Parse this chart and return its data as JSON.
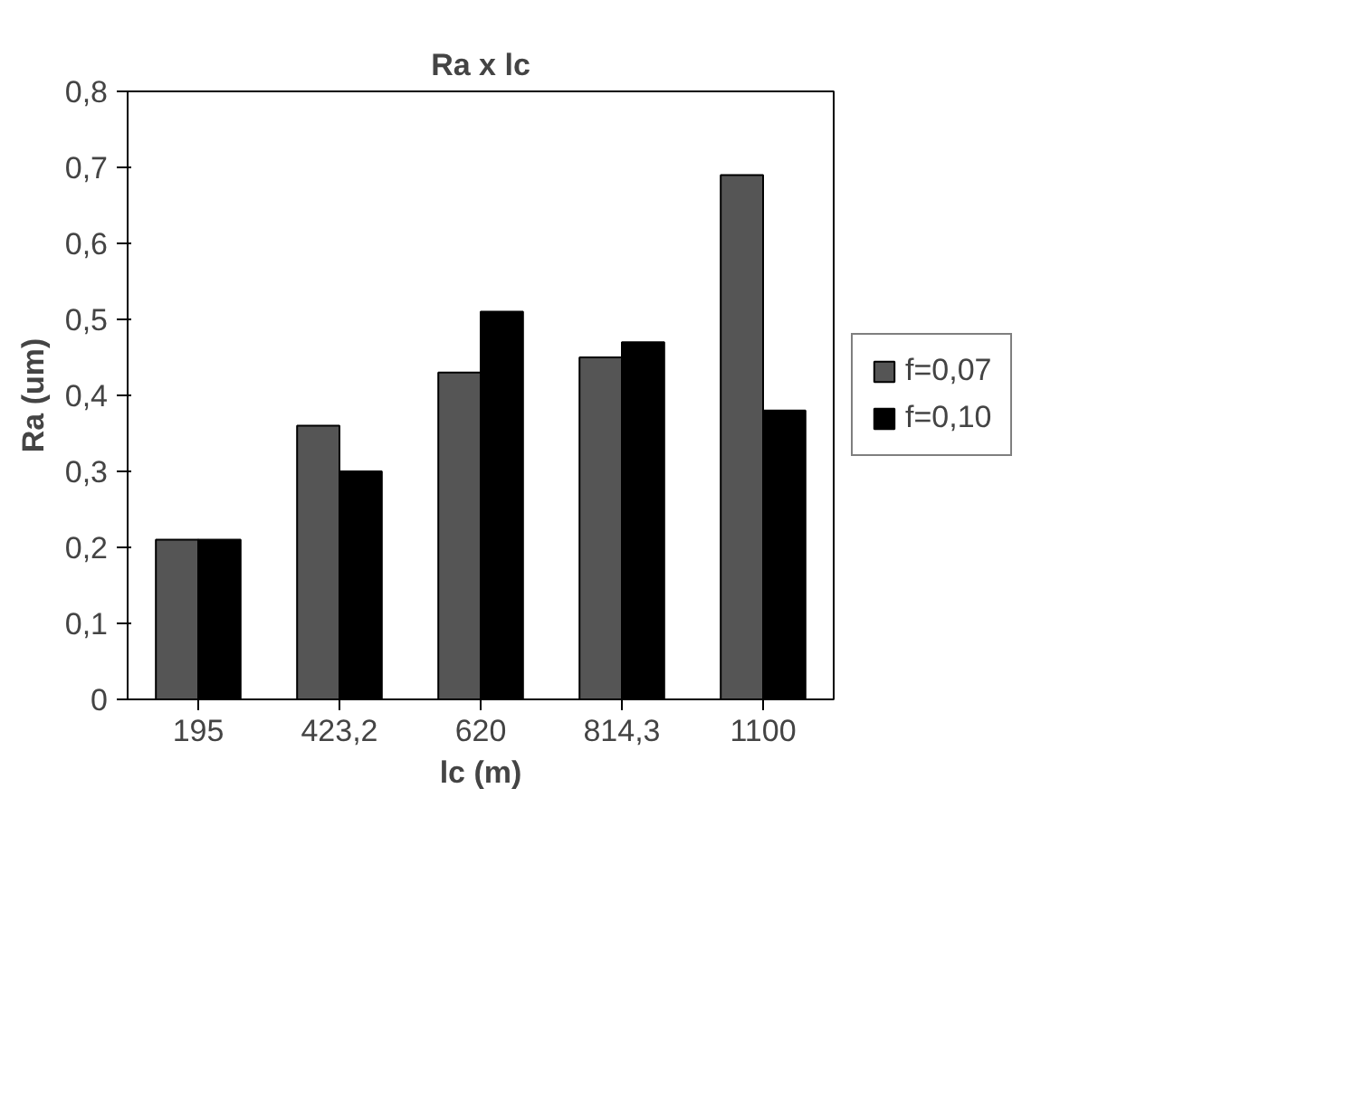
{
  "chart_data": {
    "type": "bar",
    "title": "Ra x lc",
    "xlabel": "lc (m)",
    "ylabel": "Ra (um)",
    "categories": [
      "195",
      "423,2",
      "620",
      "814,3",
      "1100"
    ],
    "series": [
      {
        "name": "f=0,07",
        "color": "#555555",
        "values": [
          0.21,
          0.36,
          0.43,
          0.45,
          0.69
        ]
      },
      {
        "name": "f=0,10",
        "color": "#000000",
        "values": [
          0.21,
          0.3,
          0.51,
          0.47,
          0.38
        ]
      }
    ],
    "ylim": [
      0,
      0.8
    ],
    "yticks": [
      {
        "value": 0,
        "label": "0"
      },
      {
        "value": 0.1,
        "label": "0,1"
      },
      {
        "value": 0.2,
        "label": "0,2"
      },
      {
        "value": 0.3,
        "label": "0,3"
      },
      {
        "value": 0.4,
        "label": "0,4"
      },
      {
        "value": 0.5,
        "label": "0,5"
      },
      {
        "value": 0.6,
        "label": "0,6"
      },
      {
        "value": 0.7,
        "label": "0,7"
      },
      {
        "value": 0.8,
        "label": "0,8"
      }
    ],
    "grid": false,
    "legend": "right"
  }
}
